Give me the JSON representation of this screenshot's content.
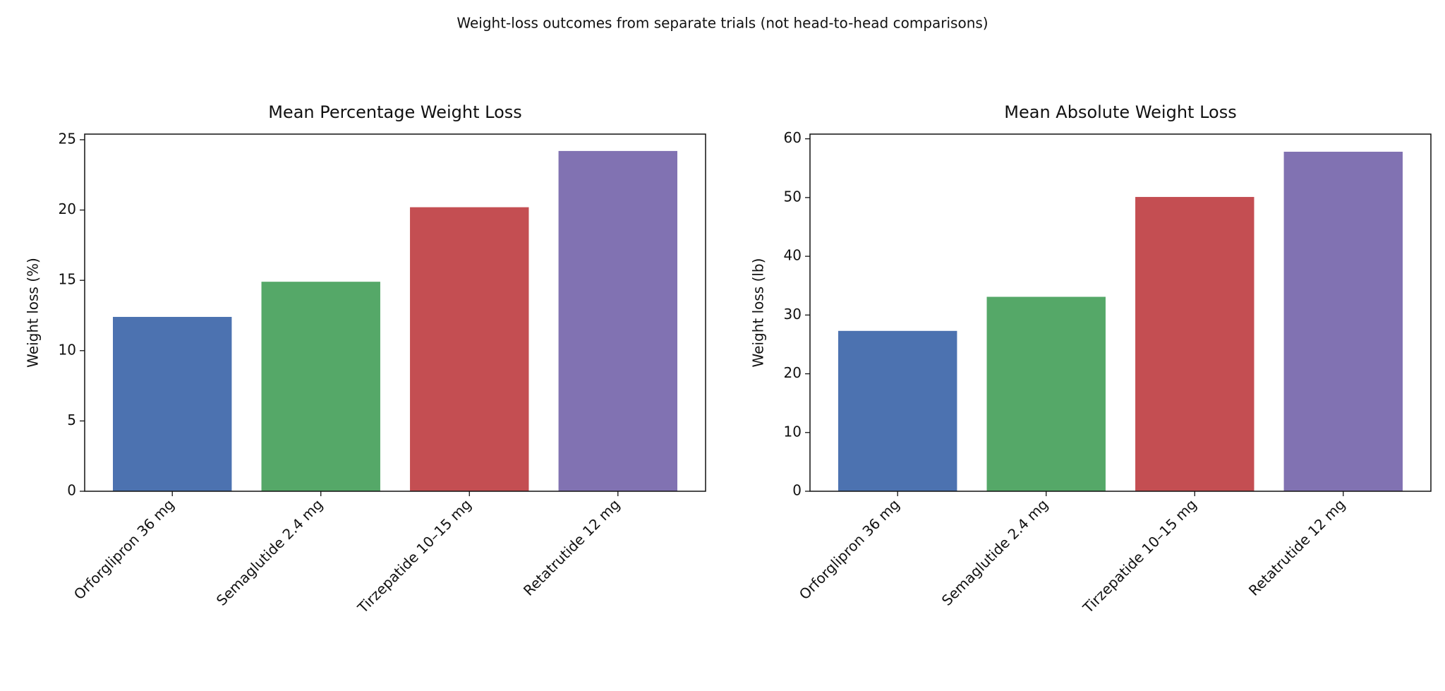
{
  "title": "Weight-loss outcomes from separate trials (not head-to-head comparisons)",
  "chart_data": [
    {
      "type": "bar",
      "title": "Mean Percentage Weight Loss",
      "y_label": "Weight loss (%)",
      "categories": [
        "Orforglipron 36 mg",
        "Semaglutide 2.4 mg",
        "Tirzepatide 10–15 mg",
        "Retatrutide 12 mg"
      ],
      "values": [
        12.4,
        14.9,
        20.2,
        24.2
      ],
      "colors": [
        "#4c72b0",
        "#55a868",
        "#c44e52",
        "#8172b2"
      ],
      "ylim": [
        0,
        25.4
      ],
      "yticks": [
        0,
        5,
        10,
        15,
        20,
        25
      ]
    },
    {
      "type": "bar",
      "title": "Mean Absolute Weight Loss",
      "y_label": "Weight loss (lb)",
      "categories": [
        "Orforglipron 36 mg",
        "Semaglutide 2.4 mg",
        "Tirzepatide 10–15 mg",
        "Retatrutide 12 mg"
      ],
      "values": [
        27.3,
        33.1,
        50.1,
        57.8
      ],
      "colors": [
        "#4c72b0",
        "#55a868",
        "#c44e52",
        "#8172b2"
      ],
      "ylim": [
        0,
        60.8
      ],
      "yticks": [
        0,
        10,
        20,
        30,
        40,
        50,
        60
      ]
    }
  ]
}
